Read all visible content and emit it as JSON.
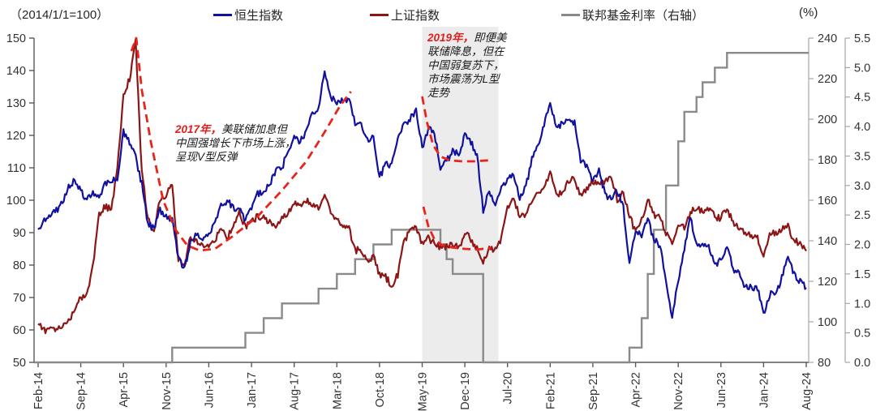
{
  "header": {
    "y_left_title": "（2014/1/1=100）",
    "y_right_title": "(%)"
  },
  "legend": [
    {
      "label": "恒生指数",
      "color": "#11119e"
    },
    {
      "label": "上证指数",
      "color": "#8c1515"
    },
    {
      "label": "联邦基金利率（右轴）",
      "color": "#8a8a8a"
    }
  ],
  "annotations": [
    {
      "lead": "2017年，",
      "lines": [
        "美联储加息但",
        "中国强增长下市场上涨，",
        "呈现V型反弹"
      ]
    },
    {
      "lead": "2019年，",
      "lines": [
        "即便美",
        "联储降息，但在",
        "中国弱复苏下，",
        "市场震荡为L型",
        "走势"
      ]
    }
  ],
  "chart_data": {
    "type": "line",
    "title": "",
    "x_unit": "month",
    "x_range": [
      "Feb-14",
      "Aug-24"
    ],
    "x_ticks": [
      "Feb-14",
      "Sep-14",
      "Apr-15",
      "Nov-15",
      "Jun-16",
      "Jan-17",
      "Aug-17",
      "Mar-18",
      "Oct-18",
      "May-19",
      "Dec-19",
      "Jul-20",
      "Feb-21",
      "Sep-21",
      "Apr-22",
      "Nov-22",
      "Jun-23",
      "Jan-24",
      "Aug-24"
    ],
    "grid": false,
    "legend_position": "top",
    "left_axis": {
      "min": 50,
      "max": 150,
      "step": 10,
      "labels": [
        "150",
        "140",
        "130",
        "120",
        "110",
        "100",
        "90",
        "80",
        "70",
        "60",
        "50"
      ]
    },
    "right_axis_index": {
      "min": 80,
      "max": 240,
      "step": 20,
      "labels": [
        "240",
        "220",
        "200",
        "180",
        "160",
        "140",
        "120",
        "100",
        "80"
      ]
    },
    "right_axis_rate": {
      "min": 0,
      "max": 5.5,
      "step": 0.5,
      "unit": "%",
      "labels": [
        "5.5",
        "5.0",
        "4.5",
        "4.0",
        "3.5",
        "3.0",
        "2.5",
        "2.0",
        "1.5",
        "1.0",
        "0.5",
        "0.0"
      ]
    },
    "highlight_band_months": [
      63,
      75.5
    ],
    "colors": {
      "band": "#ececec",
      "dashed": "#e8251c"
    },
    "series": [
      {
        "name": "恒生指数",
        "axis": "left",
        "color": "#11119e",
        "values": [
          91,
          94,
          95,
          97,
          99,
          104,
          106,
          103,
          100,
          102,
          101,
          105,
          106,
          107,
          121,
          118,
          113,
          105,
          93,
          91,
          97,
          95,
          94,
          82,
          79,
          87,
          90,
          88,
          89,
          94,
          98,
          100,
          98,
          97,
          94,
          98,
          102,
          103,
          105,
          109,
          110,
          115,
          119,
          118,
          121,
          127,
          128,
          140,
          132,
          130,
          131,
          131,
          124,
          123,
          119,
          119,
          107,
          111,
          111,
          119,
          123,
          125,
          128,
          116,
          122,
          121,
          110,
          112,
          115,
          114,
          120,
          118,
          114,
          97,
          103,
          98,
          105,
          106,
          108,
          101,
          104,
          113,
          117,
          123,
          130,
          122,
          124,
          125,
          124,
          112,
          111,
          106,
          109,
          102,
          100,
          103,
          98,
          80,
          91,
          89,
          94,
          88,
          86,
          76,
          64,
          75,
          85,
          95,
          86,
          87,
          86,
          80,
          82,
          86,
          79,
          77,
          73,
          73,
          73,
          65,
          71,
          71,
          76,
          83,
          77,
          75,
          73
        ]
      },
      {
        "name": "上证指数",
        "axis": "right_index",
        "color": "#8c1515",
        "values": [
          99,
          96,
          96,
          96,
          97,
          101,
          105,
          112,
          114,
          127,
          153,
          157,
          155,
          177,
          211,
          220,
          238,
          174,
          151,
          144,
          160,
          163,
          167,
          131,
          127,
          142,
          139,
          138,
          138,
          140,
          146,
          142,
          146,
          154,
          147,
          149,
          152,
          152,
          149,
          147,
          151,
          154,
          159,
          158,
          160,
          157,
          156,
          164,
          154,
          150,
          146,
          146,
          135,
          136,
          129,
          133,
          123,
          122,
          118,
          123,
          139,
          146,
          146,
          138,
          141,
          139,
          136,
          137,
          139,
          136,
          144,
          141,
          136,
          130,
          136,
          135,
          141,
          156,
          160,
          152,
          153,
          160,
          164,
          165,
          174,
          163,
          163,
          170,
          170,
          162,
          166,
          169,
          168,
          169,
          172,
          160,
          164,
          153,
          144,
          151,
          160,
          153,
          151,
          144,
          138,
          149,
          146,
          154,
          156,
          155,
          156,
          152,
          151,
          156,
          149,
          147,
          143,
          143,
          141,
          132,
          143,
          144,
          146,
          147,
          140,
          139,
          135
        ]
      },
      {
        "name": "联邦基金利率",
        "axis": "right_rate",
        "color": "#8a8a8a",
        "step": true,
        "values": [
          0,
          0,
          0,
          0,
          0,
          0,
          0,
          0,
          0,
          0,
          0,
          0,
          0,
          0,
          0,
          0,
          0,
          0,
          0,
          0,
          0,
          0,
          0.25,
          0.25,
          0.25,
          0.25,
          0.25,
          0.25,
          0.25,
          0.25,
          0.25,
          0.25,
          0.25,
          0.25,
          0.5,
          0.5,
          0.5,
          0.75,
          0.75,
          0.75,
          1,
          1,
          1,
          1,
          1,
          1,
          1.25,
          1.25,
          1.25,
          1.5,
          1.5,
          1.5,
          1.75,
          1.75,
          1.75,
          2,
          2,
          2,
          2.25,
          2.25,
          2.25,
          2.25,
          2.25,
          2.25,
          2.25,
          2.25,
          2,
          1.75,
          1.5,
          1.5,
          1.5,
          1.5,
          1.5,
          0,
          0,
          0,
          0,
          0,
          0,
          0,
          0,
          0,
          0,
          0,
          0,
          0,
          0,
          0,
          0,
          0,
          0,
          0,
          0,
          0,
          0,
          0,
          0,
          0.25,
          0.25,
          0.75,
          1.5,
          2.25,
          2.25,
          3,
          3,
          3.75,
          4.25,
          4.25,
          4.5,
          4.75,
          4.75,
          5,
          5,
          5.25,
          5.25,
          5.25,
          5.25,
          5.25,
          5.25,
          5.25,
          5.25,
          5.25,
          5.25,
          5.25,
          5.25,
          5.25,
          5.25
        ]
      }
    ],
    "dashed_guides": [
      {
        "name": "2017-V-shape",
        "axis": "left",
        "points": [
          [
            15.3,
            146
          ],
          [
            16.1,
            150
          ],
          [
            17,
            134
          ],
          [
            18.5,
            118
          ],
          [
            20.5,
            100
          ],
          [
            22.5,
            91
          ],
          [
            24.5,
            86
          ],
          [
            26.5,
            84.5
          ],
          [
            29,
            85
          ],
          [
            32,
            89
          ],
          [
            36,
            95
          ],
          [
            40,
            103
          ],
          [
            44,
            112
          ],
          [
            47,
            121
          ],
          [
            49.5,
            129
          ],
          [
            51.3,
            133.5
          ]
        ]
      },
      {
        "name": "2019-L-shape-hsi",
        "axis": "left",
        "points": [
          [
            63.0,
            132
          ],
          [
            63.8,
            124
          ],
          [
            64.8,
            117
          ],
          [
            66,
            113.5
          ],
          [
            67.5,
            112.3
          ],
          [
            69.5,
            112
          ],
          [
            71.5,
            112
          ],
          [
            73.8,
            112.3
          ]
        ]
      },
      {
        "name": "2019-L-shape-sse",
        "axis": "left",
        "points": [
          [
            63.2,
            98
          ],
          [
            64,
            92
          ],
          [
            65,
            88
          ],
          [
            66.2,
            86.2
          ],
          [
            68,
            85.4
          ],
          [
            70,
            85
          ],
          [
            72,
            84.8
          ],
          [
            74.3,
            85.3
          ]
        ]
      }
    ]
  }
}
